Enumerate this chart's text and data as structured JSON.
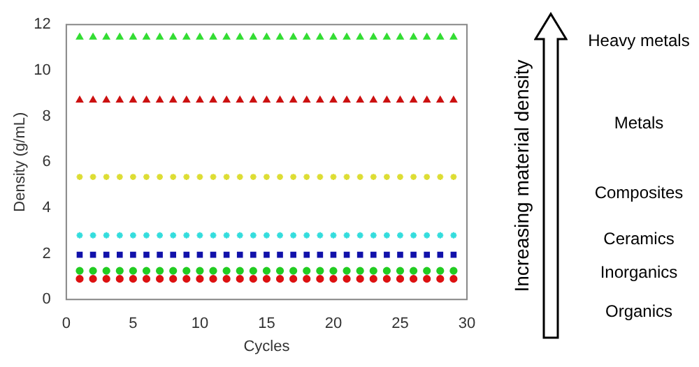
{
  "chart_data": {
    "type": "scatter",
    "xlabel": "Cycles",
    "ylabel": "Density (g/mL)",
    "x": [
      1,
      2,
      3,
      4,
      5,
      6,
      7,
      8,
      9,
      10,
      11,
      12,
      13,
      14,
      15,
      16,
      17,
      18,
      19,
      20,
      21,
      22,
      23,
      24,
      25,
      26,
      27,
      28,
      29
    ],
    "series": [
      {
        "name": "Organics",
        "color": "#dd1111",
        "marker": "circle",
        "values": [
          0.9,
          0.9,
          0.9,
          0.9,
          0.9,
          0.9,
          0.9,
          0.9,
          0.9,
          0.9,
          0.9,
          0.9,
          0.9,
          0.9,
          0.9,
          0.9,
          0.9,
          0.9,
          0.9,
          0.9,
          0.9,
          0.9,
          0.9,
          0.9,
          0.9,
          0.9,
          0.9,
          0.9,
          0.9
        ]
      },
      {
        "color": "#22cc22",
        "marker": "circle",
        "values": [
          1.25,
          1.25,
          1.25,
          1.25,
          1.25,
          1.25,
          1.25,
          1.25,
          1.25,
          1.25,
          1.25,
          1.25,
          1.25,
          1.25,
          1.25,
          1.25,
          1.25,
          1.25,
          1.25,
          1.25,
          1.25,
          1.25,
          1.25,
          1.25,
          1.25,
          1.25,
          1.25,
          1.25,
          1.25
        ]
      },
      {
        "name": "Inorganics",
        "color": "#1111aa",
        "marker": "square",
        "values": [
          1.95,
          1.95,
          1.95,
          1.95,
          1.95,
          1.95,
          1.95,
          1.95,
          1.95,
          1.95,
          1.95,
          1.95,
          1.95,
          1.95,
          1.95,
          1.95,
          1.95,
          1.95,
          1.95,
          1.95,
          1.95,
          1.95,
          1.95,
          1.95,
          1.95,
          1.95,
          1.95,
          1.95,
          1.95
        ]
      },
      {
        "name": "Ceramics",
        "color": "#33dddd",
        "marker": "cross",
        "values": [
          2.8,
          2.8,
          2.8,
          2.8,
          2.8,
          2.8,
          2.8,
          2.8,
          2.8,
          2.8,
          2.8,
          2.8,
          2.8,
          2.8,
          2.8,
          2.8,
          2.8,
          2.8,
          2.8,
          2.8,
          2.8,
          2.8,
          2.8,
          2.8,
          2.8,
          2.8,
          2.8,
          2.8,
          2.8
        ]
      },
      {
        "name": "Composites",
        "color": "#dddd33",
        "marker": "cross",
        "values": [
          5.35,
          5.35,
          5.35,
          5.35,
          5.35,
          5.35,
          5.35,
          5.35,
          5.35,
          5.35,
          5.35,
          5.35,
          5.35,
          5.35,
          5.35,
          5.35,
          5.35,
          5.35,
          5.35,
          5.35,
          5.35,
          5.35,
          5.35,
          5.35,
          5.35,
          5.35,
          5.35,
          5.35,
          5.35
        ]
      },
      {
        "name": "Metals",
        "color": "#cc1111",
        "marker": "triangle",
        "values": [
          8.7,
          8.7,
          8.7,
          8.7,
          8.7,
          8.7,
          8.7,
          8.7,
          8.7,
          8.7,
          8.7,
          8.7,
          8.7,
          8.7,
          8.7,
          8.7,
          8.7,
          8.7,
          8.7,
          8.7,
          8.7,
          8.7,
          8.7,
          8.7,
          8.7,
          8.7,
          8.7,
          8.7,
          8.7
        ]
      },
      {
        "name": "Heavy metals",
        "color": "#33dd33",
        "marker": "triangle",
        "values": [
          11.45,
          11.45,
          11.45,
          11.45,
          11.45,
          11.45,
          11.45,
          11.45,
          11.45,
          11.45,
          11.45,
          11.45,
          11.45,
          11.45,
          11.45,
          11.45,
          11.45,
          11.45,
          11.45,
          11.45,
          11.45,
          11.45,
          11.45,
          11.45,
          11.45,
          11.45,
          11.45,
          11.45,
          11.45
        ]
      }
    ],
    "xlim": [
      0,
      30
    ],
    "xticks": [
      0,
      5,
      10,
      15,
      20,
      25,
      30
    ],
    "ylim": [
      0,
      12
    ],
    "yticks": [
      0,
      2,
      4,
      6,
      8,
      10,
      12
    ],
    "grid": false,
    "legend": false,
    "annotations": [
      "Increasing material density"
    ]
  }
}
